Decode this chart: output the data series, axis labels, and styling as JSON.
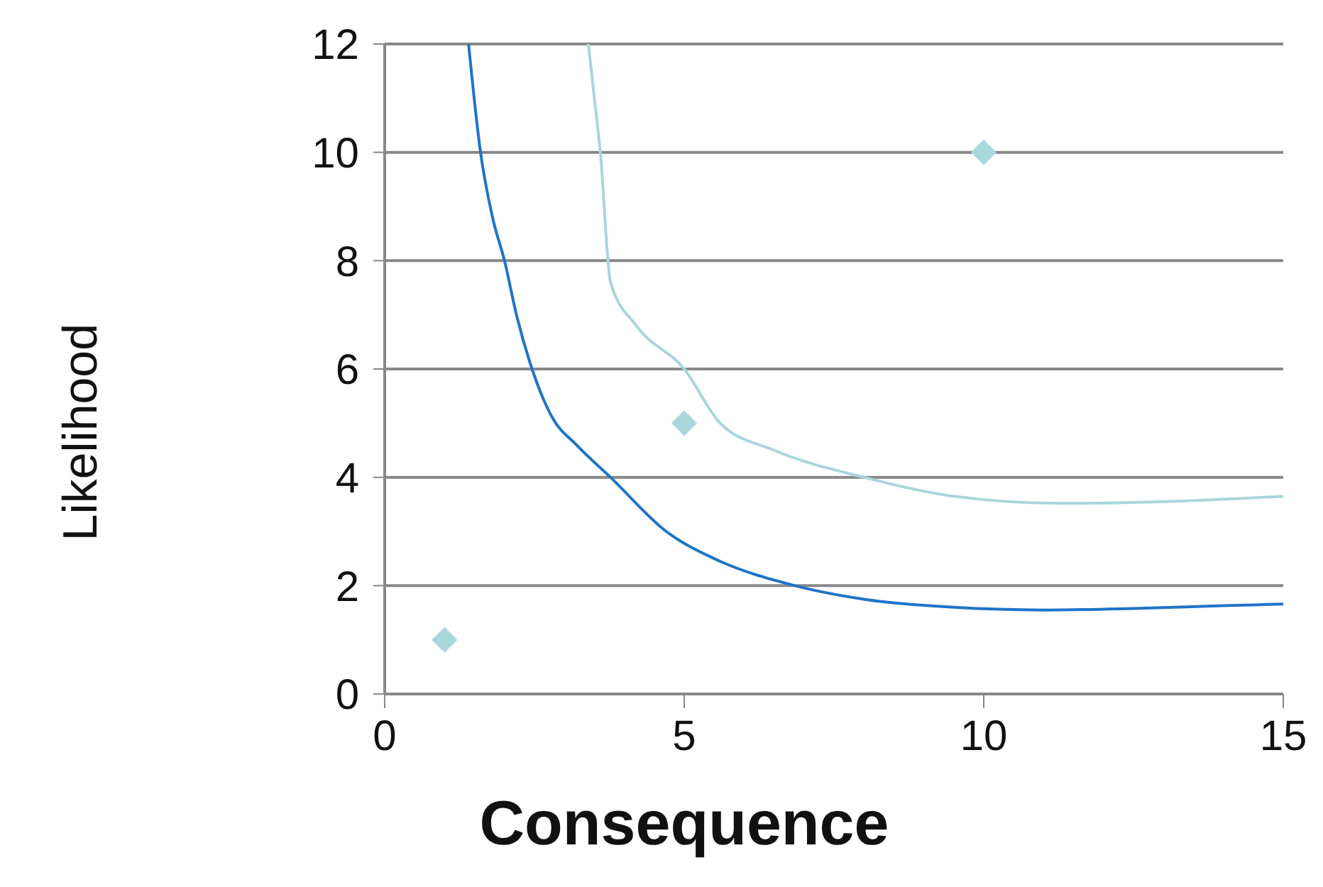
{
  "chart_data": {
    "type": "scatter",
    "xlabel": "Consequence",
    "ylabel": "Likelihood",
    "xlim": [
      0,
      15
    ],
    "xticks": [
      0,
      5,
      10,
      15
    ],
    "ylim": [
      0,
      12
    ],
    "yticks": [
      0,
      2,
      4,
      6,
      8,
      10,
      12
    ],
    "grid": "y",
    "series": [
      {
        "type": "line",
        "color": "#1f74c8",
        "marker": "none",
        "x": [
          1.4,
          1.6,
          1.8,
          2.0,
          2.2,
          2.46,
          2.8,
          3.2,
          3.77,
          4.7,
          5.5,
          6.85,
          8,
          9.5,
          11,
          12.5,
          14,
          15
        ],
        "values": [
          12,
          10,
          8.8,
          8,
          7,
          6,
          5.1,
          4.6,
          4,
          3,
          2.5,
          2,
          1.75,
          1.6,
          1.55,
          1.58,
          1.63,
          1.66
        ]
      },
      {
        "type": "line",
        "color": "#a9d6da",
        "marker": "none",
        "x": [
          3.4,
          3.5,
          3.6,
          3.77,
          4.2,
          5,
          5.6,
          6.5,
          8,
          9.5,
          11.3,
          13,
          15
        ],
        "values": [
          12,
          11,
          10,
          7.6,
          6.8,
          6,
          5,
          4.5,
          4,
          3.65,
          3.52,
          3.55,
          3.65
        ]
      },
      {
        "color": "#a8d8dc",
        "marker": "diamond",
        "x": [
          1,
          5,
          10
        ],
        "values": [
          1,
          5,
          10
        ]
      }
    ]
  }
}
